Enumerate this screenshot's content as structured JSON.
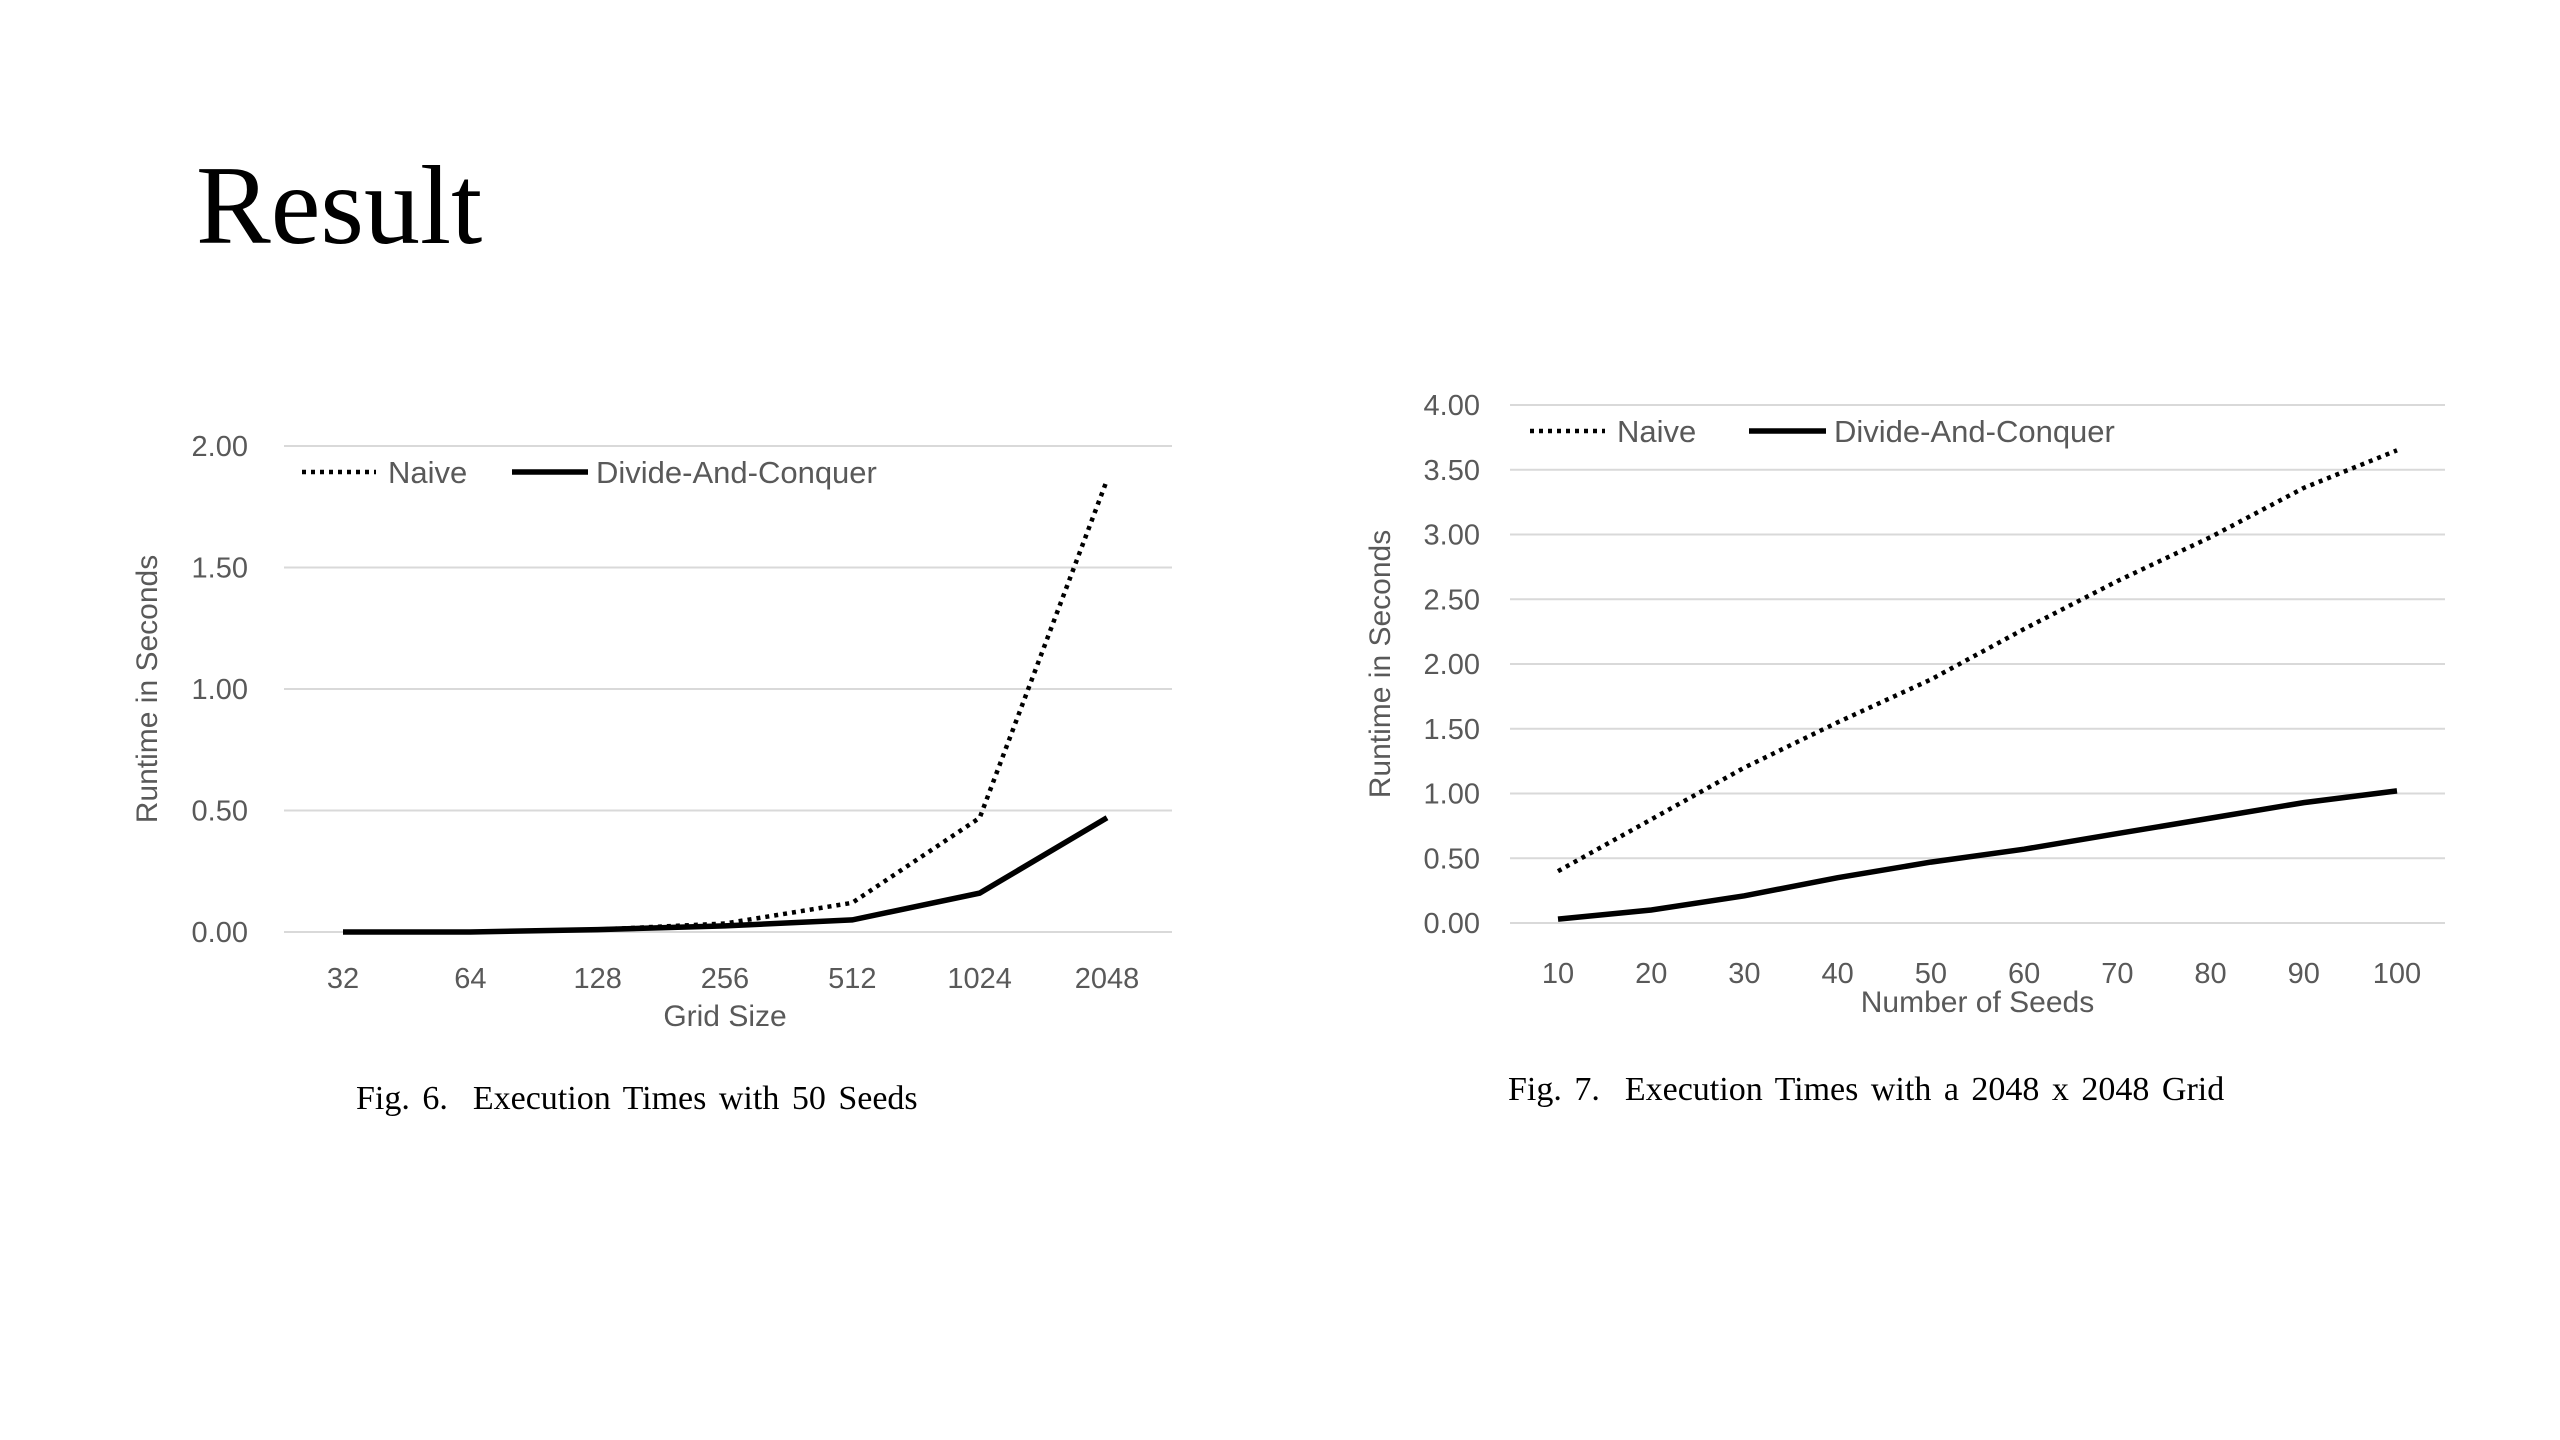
{
  "slide": {
    "title": "Result"
  },
  "charts": [
    {
      "caption": "Fig. 6.  Execution Times with 50 Seeds",
      "chart_data": {
        "type": "line",
        "x": [
          "32",
          "64",
          "128",
          "256",
          "512",
          "1024",
          "2048"
        ],
        "series": [
          {
            "name": "Naive",
            "style": "dotted",
            "values": [
              0.0,
              0.0,
              0.01,
              0.035,
              0.12,
              0.47,
              1.86
            ]
          },
          {
            "name": "Divide-And-Conquer",
            "style": "solid",
            "values": [
              0.0,
              0.0,
              0.01,
              0.025,
              0.05,
              0.16,
              0.47
            ]
          }
        ],
        "title": "",
        "xlabel": "Grid Size",
        "ylabel": "Runtime in Seconds",
        "ylim": [
          0,
          2.0
        ],
        "yticks": [
          "0.00",
          "0.50",
          "1.00",
          "1.50",
          "2.00"
        ],
        "grid": true,
        "legend": "top-left"
      }
    },
    {
      "caption": "Fig. 7.  Execution Times with a 2048 x 2048 Grid",
      "chart_data": {
        "type": "line",
        "x": [
          "10",
          "20",
          "30",
          "40",
          "50",
          "60",
          "70",
          "80",
          "90",
          "100"
        ],
        "series": [
          {
            "name": "Naive",
            "style": "dotted",
            "values": [
              0.4,
              0.8,
              1.2,
              1.55,
              1.88,
              2.27,
              2.64,
              2.98,
              3.36,
              3.65
            ]
          },
          {
            "name": "Divide-And-Conquer",
            "style": "solid",
            "values": [
              0.03,
              0.1,
              0.21,
              0.35,
              0.47,
              0.57,
              0.69,
              0.81,
              0.93,
              1.02
            ]
          }
        ],
        "title": "",
        "xlabel": "Number of Seeds",
        "ylabel": "Runtime in Seconds",
        "ylim": [
          0,
          4.0
        ],
        "yticks": [
          "0.00",
          "0.50",
          "1.00",
          "1.50",
          "2.00",
          "2.50",
          "3.00",
          "3.50",
          "4.00"
        ],
        "grid": true,
        "legend": "top-left"
      }
    }
  ]
}
